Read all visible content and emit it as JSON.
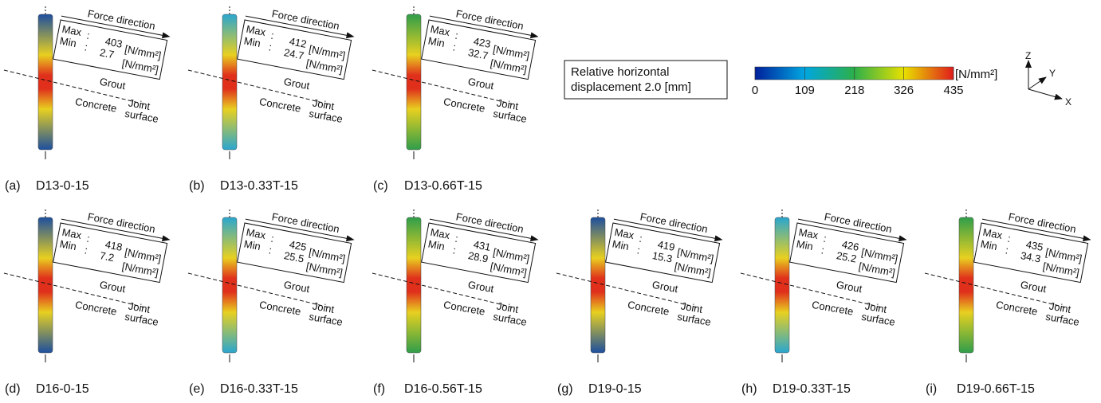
{
  "panels": [
    {
      "label": "(a)",
      "name": "D13-0-15",
      "max": 403,
      "min": 2.7,
      "color": "#1d4f9e"
    },
    {
      "label": "(b)",
      "name": "D13-0.33T-15",
      "max": 412,
      "min": 24.7,
      "color": "#2aa6cf"
    },
    {
      "label": "(c)",
      "name": "D13-0.66T-15",
      "max": 423,
      "min": 32.7,
      "color": "#2f9e4a"
    },
    {
      "label": "(d)",
      "name": "D16-0-15",
      "max": 418,
      "min": 7.2,
      "color": "#1d4f9e"
    },
    {
      "label": "(e)",
      "name": "D16-0.33T-15",
      "max": 425,
      "min": 25.5,
      "color": "#2aa6cf"
    },
    {
      "label": "(f)",
      "name": "D16-0.56T-15",
      "max": 431,
      "min": 28.9,
      "color": "#2f9e4a"
    },
    {
      "label": "(g)",
      "name": "D19-0-15",
      "max": 419,
      "min": 15.3,
      "color": "#1d4f9e"
    },
    {
      "label": "(h)",
      "name": "D19-0.33T-15",
      "max": 426,
      "min": 25.2,
      "color": "#2aa6cf"
    },
    {
      "label": "(i)",
      "name": "D19-0.66T-15",
      "max": 435,
      "min": 34.3,
      "color": "#2f9e4a"
    }
  ],
  "panel_text": {
    "force_direction": "Force direction",
    "max": "Max",
    "min": "Min",
    "colon": ":",
    "unit": "[N/mm²]",
    "grout": "Grout",
    "concrete": "Concrete",
    "joint": "Joint",
    "surface": "surface"
  },
  "displacement_box": [
    "Relative horizontal",
    "displacement 2.0 [mm]"
  ],
  "colorbar": {
    "ticks": [
      0,
      109,
      218,
      326,
      435
    ],
    "unit": "[N/mm²]"
  },
  "axes": {
    "z": "Z",
    "y": "Y",
    "x": "X"
  }
}
